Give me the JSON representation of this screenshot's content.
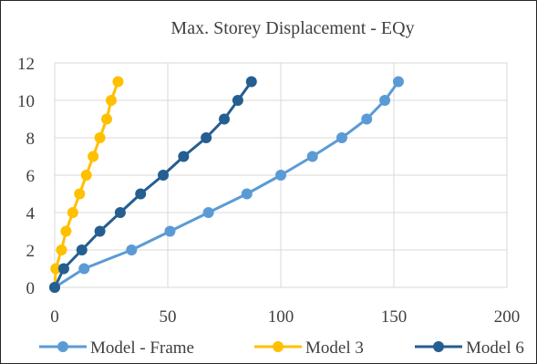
{
  "chart_data": {
    "type": "line",
    "title": "Max. Storey Displacement - EQy",
    "xlabel": "",
    "ylabel": "",
    "xlim": [
      0,
      200
    ],
    "ylim": [
      0,
      12
    ],
    "x_ticks": [
      0,
      50,
      100,
      150,
      200
    ],
    "y_ticks": [
      0,
      2,
      4,
      6,
      8,
      10,
      12
    ],
    "grid": true,
    "legend_position": "bottom",
    "series": [
      {
        "name": "Model - Frame",
        "color": "#5B9BD5",
        "x": [
          0,
          13,
          34,
          51,
          68,
          85,
          100,
          114,
          127,
          138,
          146,
          152
        ],
        "y": [
          0,
          1,
          2,
          3,
          4,
          5,
          6,
          7,
          8,
          9,
          10,
          11
        ]
      },
      {
        "name": "Model 3",
        "color": "#FFC000",
        "x": [
          0,
          0.5,
          3,
          5,
          8,
          11,
          14,
          17,
          20,
          23,
          25,
          28
        ],
        "y": [
          0,
          1,
          2,
          3,
          4,
          5,
          6,
          7,
          8,
          9,
          10,
          11
        ]
      },
      {
        "name": "Model 6",
        "color": "#255E91",
        "x": [
          0,
          4,
          12,
          20,
          29,
          38,
          48,
          57,
          67,
          75,
          81,
          87
        ],
        "y": [
          0,
          1,
          2,
          3,
          4,
          5,
          6,
          7,
          8,
          9,
          10,
          11
        ]
      }
    ]
  }
}
